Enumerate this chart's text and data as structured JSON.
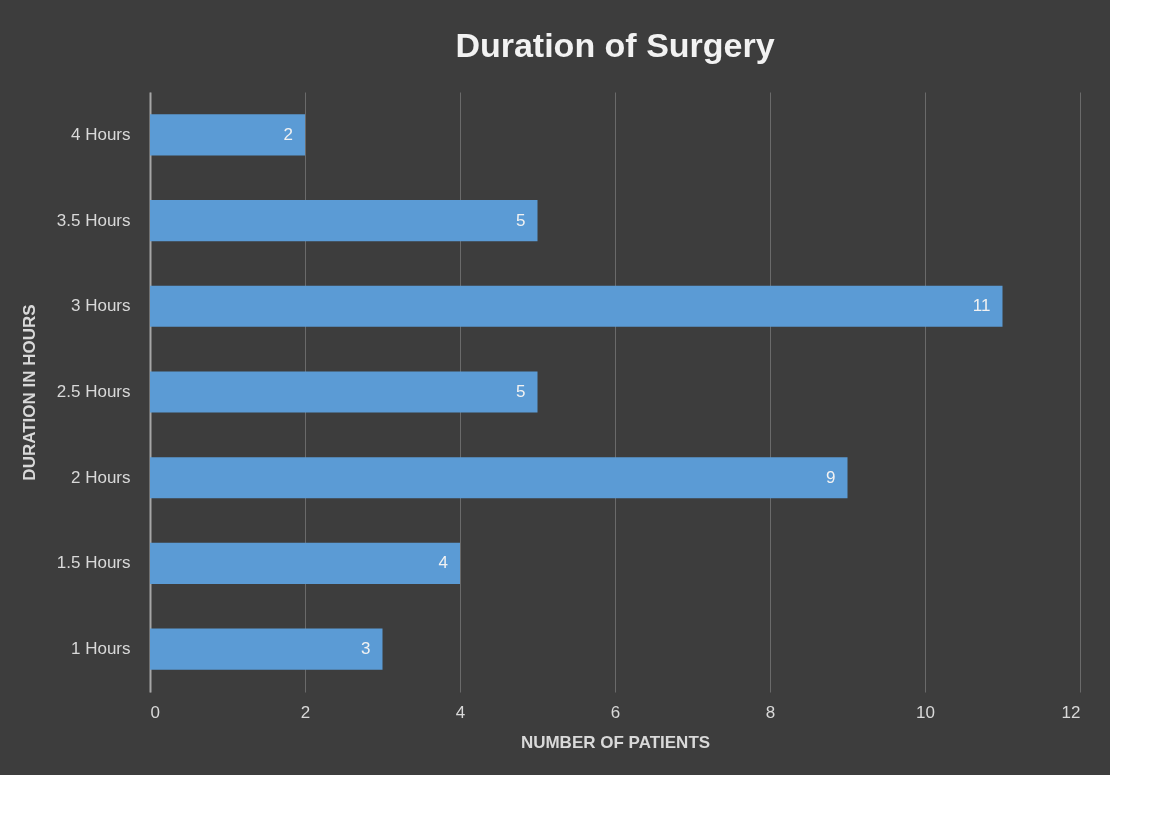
{
  "chart_data": {
    "type": "bar",
    "orientation": "horizontal",
    "title": "Duration of Surgery",
    "xlabel": "NUMBER OF PATIENTS",
    "ylabel": "DURATION IN HOURS",
    "categories": [
      "4 Hours",
      "3.5 Hours",
      "3 Hours",
      "2.5 Hours",
      "2 Hours",
      "1.5 Hours",
      "1 Hours"
    ],
    "values": [
      2,
      5,
      11,
      5,
      9,
      4,
      3
    ],
    "color": "#5b9bd5",
    "xlim": [
      0,
      12
    ],
    "xticks": [
      0,
      2,
      4,
      6,
      8,
      10,
      12
    ],
    "grid": "x",
    "data_labels": true
  }
}
